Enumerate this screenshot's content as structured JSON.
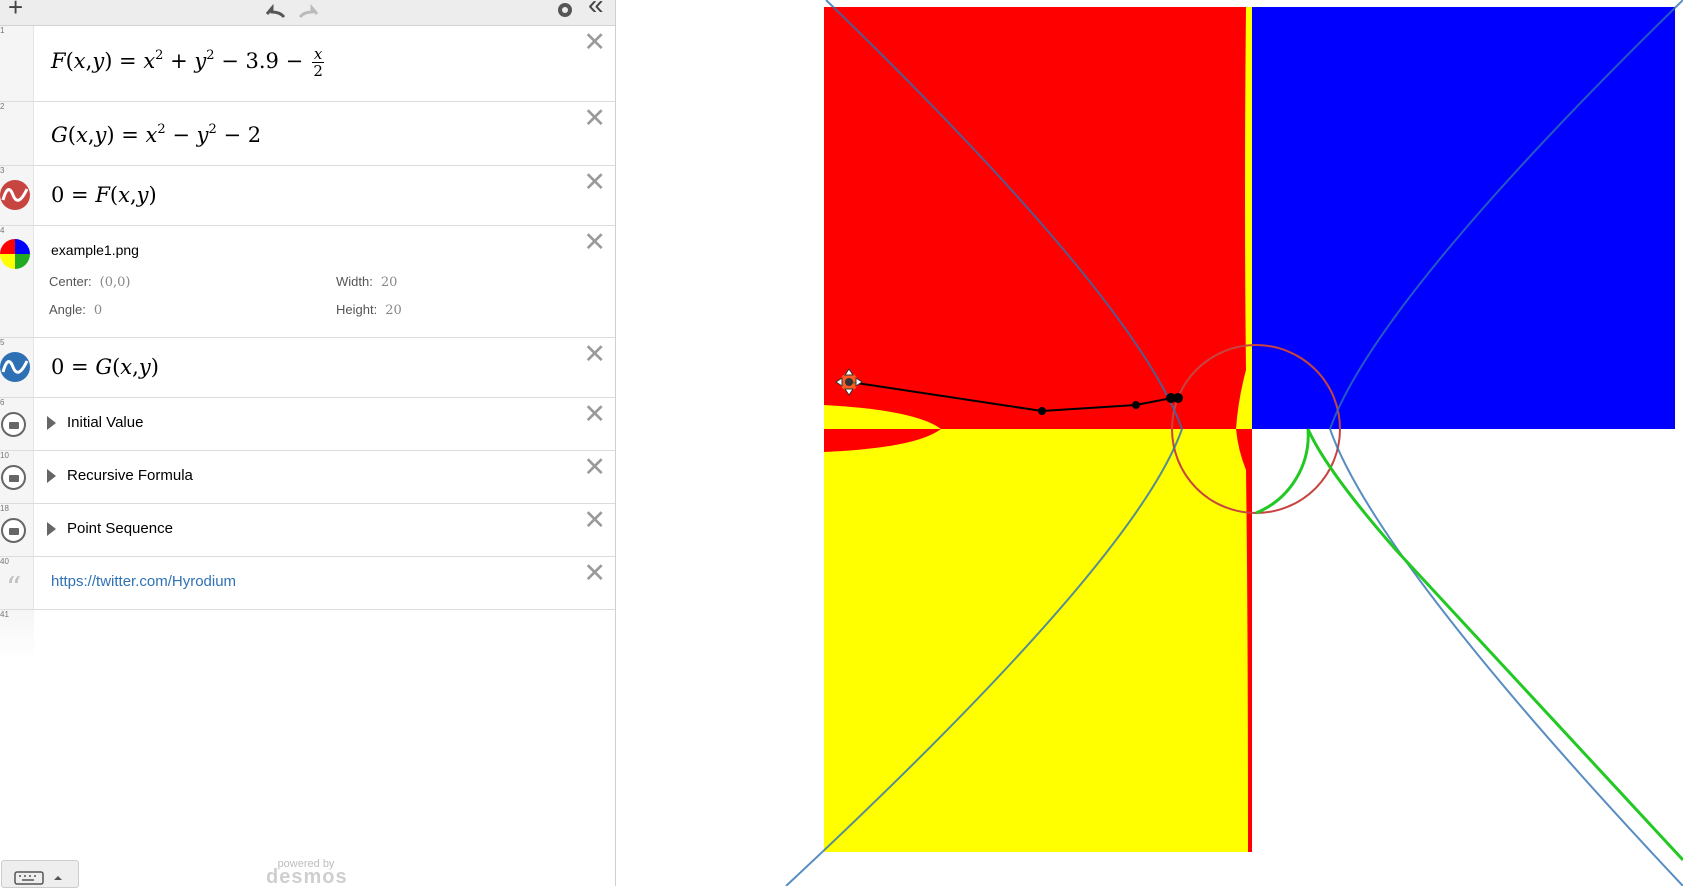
{
  "toolbar": {
    "add_label": "+",
    "settings_icon": "gear-icon",
    "undo_icon": "undo-icon",
    "redo_icon": "redo-icon",
    "collapse_label": "«"
  },
  "expressions": [
    {
      "index": "1",
      "type": "math",
      "latex": "F(x,y) = x^2 + y^2 - 3.9 - x/2"
    },
    {
      "index": "2",
      "type": "math",
      "latex": "G(x,y) = x^2 - y^2 - 2"
    },
    {
      "index": "3",
      "type": "math",
      "latex": "0 = F(x,y)",
      "color": "#c74440"
    },
    {
      "index": "4",
      "type": "image",
      "name": "example1.png",
      "center_label": "Center:",
      "center_value": "(0,0)",
      "width_label": "Width:",
      "width_value": "20",
      "angle_label": "Angle:",
      "angle_value": "0",
      "height_label": "Height:",
      "height_value": "20"
    },
    {
      "index": "5",
      "type": "math",
      "latex": "0 = G(x,y)",
      "color": "#2d70b3"
    },
    {
      "index": "6",
      "type": "folder",
      "title": "Initial Value"
    },
    {
      "index": "10",
      "type": "folder",
      "title": "Recursive Formula"
    },
    {
      "index": "18",
      "type": "folder",
      "title": "Point Sequence"
    },
    {
      "index": "40",
      "type": "note",
      "text": "https://twitter.com/Hyrodium"
    },
    {
      "index": "41",
      "type": "empty"
    }
  ],
  "footer": {
    "powered_by": "powered by",
    "brand": "desmos",
    "keyboard_icon": "keyboard-icon"
  },
  "colors": {
    "red_region": "#ff0000",
    "blue_region": "#0000ff",
    "yellow_region": "#ffff00",
    "curve_F": "#c74440",
    "curve_G": "#2d70b3",
    "green_curve": "#22c922",
    "path": "#000000"
  }
}
